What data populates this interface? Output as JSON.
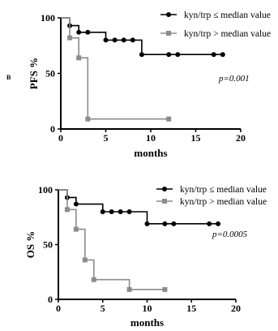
{
  "panel_label": "B",
  "chart_data": [
    {
      "type": "line",
      "title": "",
      "xlabel": "months",
      "ylabel": "PFS %",
      "xlim": [
        0,
        20
      ],
      "ylim": [
        0,
        100
      ],
      "xticks": [
        0,
        5,
        10,
        15,
        20
      ],
      "yticks": [
        0,
        50,
        100
      ],
      "grid": false,
      "legend_position": "top-right",
      "annotation": "p=0.001",
      "series": [
        {
          "name": "kyn/trp ≤ median value",
          "color": "#000000",
          "marker": "circle",
          "x": [
            0,
            1,
            2,
            3,
            5,
            6,
            7,
            8,
            9,
            12,
            13,
            17,
            18
          ],
          "y": [
            100,
            93,
            87,
            87,
            80,
            80,
            80,
            80,
            67,
            67,
            67,
            67,
            67
          ]
        },
        {
          "name": "kyn/trp > median value",
          "color": "#8c8c8c",
          "marker": "square",
          "x": [
            0,
            1,
            2,
            3,
            12
          ],
          "y": [
            100,
            82,
            64,
            9,
            9
          ]
        }
      ]
    },
    {
      "type": "line",
      "title": "",
      "xlabel": "months",
      "ylabel": "OS %",
      "xlim": [
        0,
        20
      ],
      "ylim": [
        0,
        100
      ],
      "xticks": [
        0,
        5,
        10,
        15,
        20
      ],
      "yticks": [
        0,
        50,
        100
      ],
      "grid": false,
      "legend_position": "top-right",
      "annotation": "p=0.0005",
      "series": [
        {
          "name": "kyn/trp ≤ median value",
          "color": "#000000",
          "marker": "circle",
          "x": [
            0,
            1,
            2,
            5,
            6,
            7,
            8,
            10,
            12,
            13,
            17,
            18
          ],
          "y": [
            100,
            93,
            87,
            80,
            80,
            80,
            80,
            69,
            69,
            69,
            69,
            69
          ]
        },
        {
          "name": "kyn/trp > median value",
          "color": "#8c8c8c",
          "marker": "square",
          "x": [
            0,
            1,
            2,
            3,
            4,
            8,
            12
          ],
          "y": [
            100,
            82,
            64,
            36,
            18,
            9,
            9
          ]
        }
      ]
    }
  ]
}
